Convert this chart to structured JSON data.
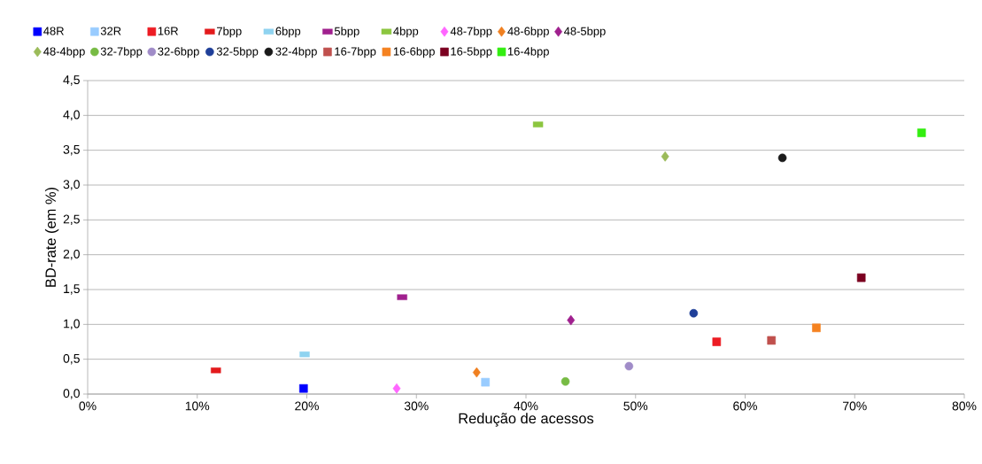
{
  "chart_data": {
    "type": "scatter",
    "xlabel": "Redução de acessos",
    "ylabel": "BD-rate (em %)",
    "xlim": [
      0,
      80
    ],
    "ylim": [
      0,
      4.5
    ],
    "xticks": [
      {
        "value": 0,
        "label": "0%"
      },
      {
        "value": 10,
        "label": "10%"
      },
      {
        "value": 20,
        "label": "20%"
      },
      {
        "value": 30,
        "label": "30%"
      },
      {
        "value": 40,
        "label": "40%"
      },
      {
        "value": 50,
        "label": "50%"
      },
      {
        "value": 60,
        "label": "60%"
      },
      {
        "value": 70,
        "label": "70%"
      },
      {
        "value": 80,
        "label": "80%"
      }
    ],
    "yticks": [
      {
        "value": 0,
        "label": "0,0"
      },
      {
        "value": 0.5,
        "label": "0,5"
      },
      {
        "value": 1,
        "label": "1,0"
      },
      {
        "value": 1.5,
        "label": "1,5"
      },
      {
        "value": 2,
        "label": "2,0"
      },
      {
        "value": 2.5,
        "label": "2,5"
      },
      {
        "value": 3,
        "label": "3,0"
      },
      {
        "value": 3.5,
        "label": "3,5"
      },
      {
        "value": 4,
        "label": "4,0"
      },
      {
        "value": 4.5,
        "label": "4,5"
      }
    ],
    "grid": "y",
    "legend": "top",
    "series": [
      {
        "name": "48R",
        "color": "#0000ff",
        "marker": "square",
        "x": [
          19.7
        ],
        "values": [
          0.08
        ]
      },
      {
        "name": "32R",
        "color": "#99ccff",
        "marker": "square",
        "x": [
          36.3
        ],
        "values": [
          0.17
        ]
      },
      {
        "name": "16R",
        "color": "#ed1c24",
        "marker": "square",
        "x": [
          57.4
        ],
        "values": [
          0.75
        ]
      },
      {
        "name": "7bpp",
        "color": "#e31a1c",
        "x": [
          11.7
        ],
        "values": [
          0.34
        ]
      },
      {
        "name": "6bpp",
        "color": "#8fd3f0",
        "x": [
          19.8
        ],
        "values": [
          0.57
        ]
      },
      {
        "name": "5bpp",
        "color": "#a0208e",
        "x": [
          28.7
        ],
        "values": [
          1.39
        ]
      },
      {
        "name": "4bpp",
        "color": "#8cc63f",
        "x": [
          41.1
        ],
        "values": [
          3.87
        ]
      },
      {
        "name": "48-7bpp",
        "color": "#ff66ff",
        "marker": "diamond",
        "x": [
          28.2
        ],
        "values": [
          0.08
        ]
      },
      {
        "name": "48-6bpp",
        "color": "#f08020",
        "marker": "diamond",
        "x": [
          35.5
        ],
        "values": [
          0.31
        ]
      },
      {
        "name": "48-5bpp",
        "color": "#a0208e",
        "marker": "diamond",
        "x": [
          44.1
        ],
        "values": [
          1.06
        ]
      },
      {
        "name": "48-4bpp",
        "color": "#9bbb59",
        "marker": "diamond",
        "x": [
          52.7
        ],
        "values": [
          3.41
        ]
      },
      {
        "name": "32-7bpp",
        "color": "#77bb44",
        "marker": "circle",
        "x": [
          43.6
        ],
        "values": [
          0.18
        ]
      },
      {
        "name": "32-6bpp",
        "color": "#a08cc8",
        "marker": "circle",
        "x": [
          49.4
        ],
        "values": [
          0.4
        ]
      },
      {
        "name": "32-5bpp",
        "color": "#1f3f99",
        "marker": "circle",
        "x": [
          55.3
        ],
        "values": [
          1.16
        ]
      },
      {
        "name": "32-4bpp",
        "color": "#1a1a1a",
        "marker": "circle",
        "x": [
          63.4
        ],
        "values": [
          3.39
        ]
      },
      {
        "name": "16-7bpp",
        "color": "#c0504d",
        "marker": "square",
        "x": [
          62.4
        ],
        "values": [
          0.77
        ]
      },
      {
        "name": "16-6bpp",
        "color": "#f58220",
        "marker": "square",
        "x": [
          66.5
        ],
        "values": [
          0.95
        ]
      },
      {
        "name": "16-5bpp",
        "color": "#7b0020",
        "marker": "square",
        "x": [
          70.6
        ],
        "values": [
          1.67
        ]
      },
      {
        "name": "16-4bpp",
        "color": "#33ee11",
        "marker": "square",
        "x": [
          76.1
        ],
        "values": [
          3.75
        ]
      }
    ]
  }
}
